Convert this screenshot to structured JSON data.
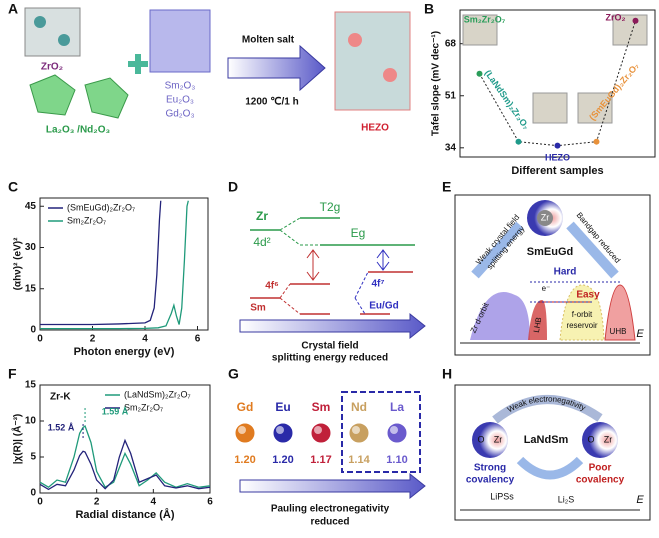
{
  "panel_labels": [
    "A",
    "B",
    "C",
    "D",
    "E",
    "F",
    "G",
    "H"
  ],
  "panel_a": {
    "zro2": "ZrO₂",
    "la_nd": "La₂O₃ /Nd₂O₃",
    "oxides": [
      "Sm₂O₃",
      "Eu₂O₃",
      "Gd₂O₃"
    ],
    "condition": "Molten salt",
    "temperature": "1200 ℃/1 h",
    "product": "HEZO"
  },
  "chart_data": [
    {
      "type": "scatter",
      "ylabel": "Tafel slope (mV dec⁻¹)",
      "xlabel": "Different samples",
      "categories": [
        "Sm₂Zr₂O₇",
        "(LaNdSm)₂Zr₂O₇",
        "HEZO",
        "(SmEuGd)₂Zr₂O₇",
        "ZrO₂"
      ],
      "values": [
        58.2,
        36,
        34.7,
        36,
        75.5
      ],
      "colors": [
        "#2a9d5a",
        "#1f9a8a",
        "#2a2aa8",
        "#e8913a",
        "#8b1a5a"
      ],
      "ylim": [
        31,
        79
      ],
      "yticks": [
        34,
        51,
        68
      ],
      "connect": "dotted"
    },
    {
      "type": "line",
      "xlabel": "Photon energy (eV)",
      "ylabel": "(αhν)² (eV)²",
      "xlim": [
        0,
        6.4
      ],
      "xticks": [
        0,
        2,
        4,
        6
      ],
      "ylim": [
        0,
        48
      ],
      "yticks": [
        0,
        15,
        30,
        45
      ],
      "legend": "upper left",
      "series": [
        {
          "name": "(SmEuGd)₂Zr₂O₇",
          "color": "#23237a",
          "x": [
            0,
            1,
            2,
            3,
            4,
            4.2,
            4.35,
            4.45,
            4.55,
            4.6
          ],
          "values": [
            2,
            2,
            2,
            2.2,
            2.6,
            3.5,
            8,
            20,
            40,
            47
          ]
        },
        {
          "name": "Sm₂Zr₂O₇",
          "color": "#1f9a7a",
          "x": [
            0,
            1,
            2,
            3,
            4,
            4.5,
            4.8,
            5.0,
            5.1,
            5.2,
            5.3,
            5.4,
            5.5,
            5.6,
            5.65
          ],
          "values": [
            0.5,
            0.5,
            0.5,
            0.5,
            0.6,
            0.8,
            1.5,
            6,
            9,
            5,
            2,
            8,
            25,
            45,
            47
          ]
        }
      ]
    },
    {
      "type": "line",
      "label": "Zr-K",
      "xlabel": "Radial distance (Å)",
      "ylabel": "|χ(R)| (Å⁻³)",
      "xlim": [
        0,
        6
      ],
      "xticks": [
        0,
        2,
        4,
        6
      ],
      "ylim": [
        0,
        15
      ],
      "yticks": [
        0,
        5,
        10,
        15
      ],
      "legend": "upper right",
      "series": [
        {
          "name": "(LaNdSm)₂Zr₂O₇",
          "color": "#1f9a7a",
          "x": [
            0,
            0.3,
            0.6,
            0.9,
            1.2,
            1.4,
            1.52,
            1.59,
            1.8,
            2.0,
            2.3,
            2.6,
            2.8,
            3.0,
            3.2,
            3.5,
            3.8,
            4.1,
            4.4,
            4.8,
            5.2,
            5.6,
            6
          ],
          "values": [
            1.5,
            0.8,
            1.8,
            1.5,
            5,
            8.3,
            9.1,
            9.3,
            7,
            3,
            0.8,
            1.5,
            3.5,
            5.5,
            4,
            1,
            1.8,
            2.8,
            1.5,
            0.8,
            1.3,
            0.8,
            1
          ]
        },
        {
          "name": "Sm₂Zr₂O₇",
          "color": "#23237a",
          "x": [
            0,
            0.3,
            0.6,
            0.9,
            1.2,
            1.4,
            1.52,
            1.59,
            1.8,
            2.0,
            2.3,
            2.6,
            2.8,
            3.0,
            3.2,
            3.5,
            3.8,
            4.1,
            4.4,
            4.8,
            5.2,
            5.6,
            6
          ],
          "values": [
            1.2,
            0.5,
            1.2,
            1,
            3.2,
            5.2,
            5.8,
            5.7,
            4,
            1.8,
            0.6,
            1.8,
            5,
            7.3,
            5.5,
            1.5,
            2,
            2.5,
            1,
            0.7,
            1,
            0.6,
            0.8
          ]
        }
      ],
      "annotations": [
        {
          "text": "1.52 Å",
          "x": 1.52
        },
        {
          "text": "1.59 Å",
          "x": 1.59
        }
      ]
    }
  ],
  "panel_d": {
    "zr": "Zr",
    "t2g": "T2g",
    "d_orbital": "4d²",
    "eg": "Eg",
    "sm_orbital": "4f⁶",
    "sm": "Sm",
    "eugd_orbital": "4f⁷",
    "eugd": "Eu/Gd",
    "caption": [
      "Crystal field",
      "splitting energy reduced"
    ]
  },
  "panel_e": {
    "zr": "Zr",
    "center": "SmEuGd",
    "left_arrow": [
      "Weak crystal field",
      "splitting energy"
    ],
    "right_arrow": "Bandgap reduced",
    "hard": "Hard",
    "easy": "Easy",
    "electron": "e⁻",
    "d_orbit": "Zr  d-orbit",
    "lhb": "LHB",
    "reservoir": [
      "f-orbit",
      "reservoir"
    ],
    "uhb": "UHB",
    "axis": "E"
  },
  "panel_g": {
    "elements": [
      {
        "symbol": "Gd",
        "value": "1.20",
        "color": "#e07b20"
      },
      {
        "symbol": "Eu",
        "value": "1.20",
        "color": "#2a2aa8"
      },
      {
        "symbol": "Sm",
        "value": "1.17",
        "color": "#c0203a"
      },
      {
        "symbol": "Nd",
        "value": "1.14",
        "color": "#c8a060"
      },
      {
        "symbol": "La",
        "value": "1.10",
        "color": "#6a5acd"
      }
    ],
    "caption": [
      "Pauling electronegativity",
      "reduced"
    ]
  },
  "panel_h": {
    "arc": "Weak electronegativity",
    "center": "LaNdSm",
    "o": "O",
    "zr": "Zr",
    "left": [
      "Strong",
      "covalency"
    ],
    "right": [
      "Poor",
      "covalency"
    ],
    "lips": "LiPSs",
    "li2s": "Li₂S",
    "axis": "E"
  }
}
